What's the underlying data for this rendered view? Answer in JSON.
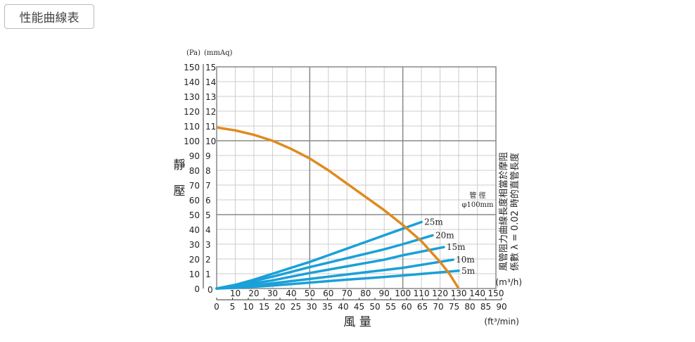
{
  "button": {
    "label": "性能曲線表"
  },
  "chart_data": {
    "type": "line",
    "title": "",
    "xlabel": "風 量",
    "ylabel": "靜 壓",
    "x_unit_primary": "(m³/h)",
    "x_unit_secondary": "(ft³/min)",
    "y_unit_pa": "(Pa)",
    "y_unit_mmaq": "(mmAq)",
    "xlim": [
      0,
      150
    ],
    "ylim": [
      0,
      15
    ],
    "grid": true,
    "x_ticks": [
      0,
      10,
      20,
      30,
      40,
      50,
      60,
      70,
      80,
      90,
      100,
      110,
      120,
      130,
      140,
      150
    ],
    "x2_ticks": [
      0,
      5,
      10,
      15,
      20,
      25,
      30,
      35,
      40,
      45,
      50,
      55,
      60,
      65,
      70,
      75,
      80,
      85,
      90
    ],
    "y_ticks_mmaq": [
      1,
      2,
      3,
      4,
      5,
      6,
      7,
      8,
      9,
      10,
      11,
      12,
      13,
      14,
      15
    ],
    "y_ticks_pa": [
      0,
      10,
      20,
      30,
      40,
      50,
      60,
      70,
      80,
      90,
      100,
      110,
      120,
      130,
      140,
      150
    ],
    "annotation_pipe": [
      "管 徑",
      "φ100mm"
    ],
    "side_note": [
      "風管阻力曲線長度相當於摩阻",
      "係數 λ = 0.02 時的直管長度"
    ],
    "colors": {
      "fan": "#e08a1e",
      "duct": "#1aa0d8",
      "grid": "#ccc",
      "major": "#888"
    },
    "fan_curve": {
      "name": "fan",
      "x": [
        0,
        10,
        20,
        30,
        40,
        50,
        60,
        70,
        80,
        90,
        100,
        110,
        120,
        125,
        130
      ],
      "y": [
        10.9,
        10.7,
        10.4,
        10.0,
        9.45,
        8.8,
        8.0,
        7.1,
        6.2,
        5.3,
        4.3,
        3.2,
        1.8,
        1.0,
        0
      ]
    },
    "series": [
      {
        "name": "25m",
        "x": [
          0,
          10,
          20,
          30,
          40,
          50,
          60,
          70,
          80,
          90,
          100,
          110
        ],
        "y": [
          0,
          0.25,
          0.6,
          1.0,
          1.4,
          1.8,
          2.25,
          2.7,
          3.15,
          3.6,
          4.05,
          4.5
        ]
      },
      {
        "name": "20m",
        "x": [
          0,
          10,
          20,
          30,
          50,
          70,
          90,
          100,
          116
        ],
        "y": [
          0,
          0.2,
          0.5,
          0.8,
          1.45,
          2.05,
          2.65,
          3.0,
          3.6
        ]
      },
      {
        "name": "15m",
        "x": [
          0,
          10,
          20,
          30,
          50,
          70,
          90,
          100,
          122
        ],
        "y": [
          0,
          0.15,
          0.35,
          0.55,
          1.05,
          1.5,
          1.95,
          2.25,
          2.8
        ]
      },
      {
        "name": "10m",
        "x": [
          0,
          10,
          20,
          30,
          50,
          70,
          90,
          100,
          127
        ],
        "y": [
          0,
          0.08,
          0.2,
          0.35,
          0.65,
          0.95,
          1.25,
          1.4,
          1.95
        ]
      },
      {
        "name": "5m",
        "x": [
          0,
          10,
          20,
          30,
          50,
          70,
          90,
          100,
          130
        ],
        "y": [
          0,
          0.05,
          0.12,
          0.2,
          0.4,
          0.6,
          0.78,
          0.88,
          1.2
        ]
      }
    ]
  }
}
